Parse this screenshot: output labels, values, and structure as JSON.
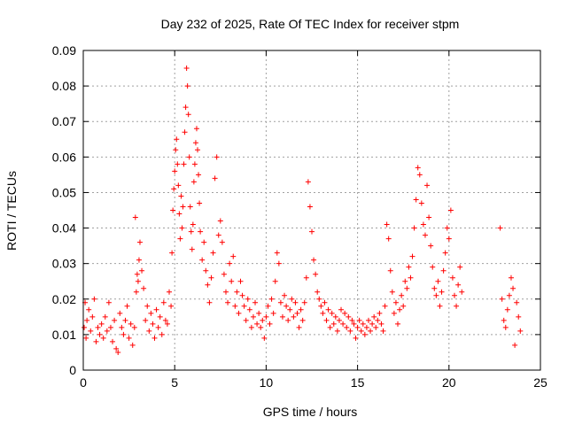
{
  "chart_data": {
    "type": "scatter",
    "title": "Day 232 of 2025, Rate Of TEC Index for receiver stpm",
    "xlabel": "GPS time / hours",
    "ylabel": "ROTI / TECUs",
    "xlim": [
      0,
      25
    ],
    "ylim": [
      0,
      0.09
    ],
    "x_ticks": [
      "0",
      "5",
      "10",
      "15",
      "20",
      "25"
    ],
    "y_ticks": [
      "0",
      "0.01",
      "0.02",
      "0.03",
      "0.04",
      "0.05",
      "0.06",
      "0.07",
      "0.08",
      "0.09"
    ],
    "grid": true,
    "marker": "+",
    "color": "#ff0000",
    "series": [
      {
        "x": [
          0.05,
          0.1,
          0.15,
          0.2,
          0.3,
          0.4,
          0.5,
          0.6,
          0.7,
          0.8,
          0.9,
          1.0,
          1.1,
          1.2,
          1.3,
          1.4,
          1.5,
          1.6,
          1.7,
          1.8,
          1.9,
          2.0,
          2.1,
          2.2,
          2.3,
          2.4,
          2.5,
          2.6,
          2.7,
          2.8,
          2.85,
          2.9,
          2.95,
          3.0,
          3.05,
          3.1,
          3.2,
          3.3,
          3.4,
          3.5,
          3.6,
          3.7,
          3.8,
          3.9,
          4.0,
          4.1,
          4.2,
          4.3,
          4.4,
          4.5,
          4.6,
          4.7,
          4.8,
          4.85,
          4.9,
          4.95,
          5.0,
          5.05,
          5.1,
          5.15,
          5.2,
          5.25,
          5.3,
          5.35,
          5.4,
          5.45,
          5.5,
          5.55,
          5.6,
          5.65,
          5.7,
          5.75,
          5.8,
          5.85,
          5.9,
          5.95,
          6.0,
          6.05,
          6.1,
          6.15,
          6.2,
          6.25,
          6.3,
          6.35,
          6.4,
          6.5,
          6.6,
          6.7,
          6.8,
          6.9,
          7.0,
          7.1,
          7.2,
          7.3,
          7.4,
          7.5,
          7.6,
          7.7,
          7.8,
          7.9,
          8.0,
          8.1,
          8.2,
          8.3,
          8.4,
          8.5,
          8.6,
          8.7,
          8.8,
          8.9,
          9.0,
          9.1,
          9.2,
          9.3,
          9.4,
          9.5,
          9.6,
          9.7,
          9.8,
          9.9,
          10.0,
          10.1,
          10.2,
          10.3,
          10.4,
          10.5,
          10.6,
          10.7,
          10.8,
          10.9,
          11.0,
          11.1,
          11.2,
          11.3,
          11.4,
          11.5,
          11.6,
          11.7,
          11.8,
          11.9,
          12.0,
          12.1,
          12.2,
          12.3,
          12.4,
          12.5,
          12.6,
          12.7,
          12.8,
          12.9,
          13.0,
          13.1,
          13.2,
          13.3,
          13.4,
          13.5,
          13.6,
          13.7,
          13.8,
          13.9,
          14.0,
          14.1,
          14.2,
          14.3,
          14.4,
          14.5,
          14.6,
          14.7,
          14.8,
          14.9,
          15.0,
          15.1,
          15.2,
          15.3,
          15.4,
          15.5,
          15.6,
          15.7,
          15.8,
          15.9,
          16.0,
          16.1,
          16.2,
          16.3,
          16.4,
          16.5,
          16.6,
          16.7,
          16.8,
          16.9,
          17.0,
          17.1,
          17.2,
          17.3,
          17.4,
          17.5,
          17.6,
          17.7,
          17.8,
          17.9,
          18.0,
          18.1,
          18.2,
          18.3,
          18.4,
          18.5,
          18.6,
          18.7,
          18.8,
          18.9,
          19.0,
          19.1,
          19.2,
          19.3,
          19.4,
          19.5,
          19.6,
          19.7,
          19.8,
          19.9,
          20.0,
          20.1,
          20.2,
          20.3,
          20.4,
          20.5,
          20.6,
          20.7,
          22.8,
          22.9,
          23.0,
          23.1,
          23.2,
          23.3,
          23.4,
          23.5,
          23.6,
          23.7,
          23.8,
          23.9
        ],
        "y": [
          0.012,
          0.019,
          0.009,
          0.014,
          0.017,
          0.011,
          0.015,
          0.02,
          0.008,
          0.012,
          0.01,
          0.013,
          0.009,
          0.015,
          0.011,
          0.019,
          0.012,
          0.008,
          0.014,
          0.006,
          0.005,
          0.016,
          0.012,
          0.01,
          0.014,
          0.018,
          0.009,
          0.013,
          0.007,
          0.012,
          0.043,
          0.022,
          0.027,
          0.025,
          0.031,
          0.036,
          0.028,
          0.023,
          0.014,
          0.018,
          0.011,
          0.016,
          0.013,
          0.009,
          0.017,
          0.012,
          0.015,
          0.01,
          0.019,
          0.014,
          0.013,
          0.022,
          0.018,
          0.033,
          0.045,
          0.051,
          0.056,
          0.062,
          0.065,
          0.058,
          0.052,
          0.044,
          0.037,
          0.049,
          0.04,
          0.046,
          0.058,
          0.067,
          0.074,
          0.085,
          0.08,
          0.072,
          0.06,
          0.046,
          0.039,
          0.034,
          0.041,
          0.053,
          0.058,
          0.064,
          0.068,
          0.062,
          0.055,
          0.047,
          0.039,
          0.031,
          0.036,
          0.028,
          0.024,
          0.019,
          0.026,
          0.033,
          0.054,
          0.06,
          0.038,
          0.042,
          0.036,
          0.027,
          0.022,
          0.019,
          0.03,
          0.025,
          0.032,
          0.018,
          0.022,
          0.016,
          0.025,
          0.021,
          0.018,
          0.014,
          0.02,
          0.017,
          0.012,
          0.015,
          0.019,
          0.013,
          0.016,
          0.012,
          0.014,
          0.009,
          0.015,
          0.018,
          0.013,
          0.02,
          0.016,
          0.025,
          0.033,
          0.03,
          0.019,
          0.015,
          0.021,
          0.018,
          0.014,
          0.017,
          0.02,
          0.015,
          0.019,
          0.016,
          0.012,
          0.017,
          0.014,
          0.019,
          0.026,
          0.053,
          0.046,
          0.039,
          0.031,
          0.027,
          0.022,
          0.02,
          0.018,
          0.016,
          0.019,
          0.014,
          0.017,
          0.012,
          0.016,
          0.013,
          0.015,
          0.011,
          0.014,
          0.017,
          0.013,
          0.016,
          0.012,
          0.015,
          0.011,
          0.014,
          0.013,
          0.009,
          0.012,
          0.014,
          0.011,
          0.013,
          0.01,
          0.012,
          0.014,
          0.011,
          0.013,
          0.015,
          0.012,
          0.014,
          0.016,
          0.013,
          0.011,
          0.018,
          0.041,
          0.037,
          0.028,
          0.022,
          0.016,
          0.019,
          0.013,
          0.017,
          0.021,
          0.018,
          0.025,
          0.023,
          0.029,
          0.026,
          0.032,
          0.04,
          0.048,
          0.057,
          0.055,
          0.047,
          0.041,
          0.038,
          0.052,
          0.043,
          0.035,
          0.029,
          0.023,
          0.021,
          0.025,
          0.018,
          0.022,
          0.028,
          0.033,
          0.04,
          0.037,
          0.045,
          0.026,
          0.021,
          0.018,
          0.024,
          0.029,
          0.022,
          0.04,
          0.02,
          0.014,
          0.012,
          0.017,
          0.021,
          0.026,
          0.023,
          0.007,
          0.019,
          0.015,
          0.011
        ]
      }
    ]
  }
}
